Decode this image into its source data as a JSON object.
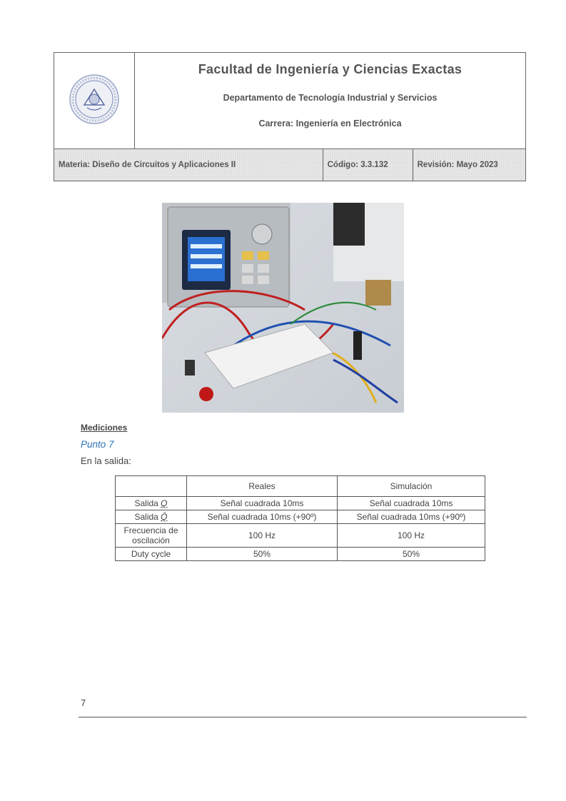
{
  "header": {
    "faculty": "Facultad de Ingeniería y Ciencias Exactas",
    "department": "Departamento de Tecnología Industrial y Servicios",
    "career": "Carrera: Ingeniería en Electrónica",
    "subject": "Materia: Diseño de Circuitos y Aplicaciones II",
    "code": "Código: 3.3.132",
    "revision": "Revisión: Mayo 2023"
  },
  "logo": {
    "name": "university-seal",
    "color": "#3a5aa8"
  },
  "photo": {
    "name": "lab-bench-photo"
  },
  "body": {
    "heading": "Mediciones",
    "subheading": "Punto 7",
    "intro": "En la salida:"
  },
  "table": {
    "headers": [
      "",
      "Reales",
      "Simulación"
    ],
    "rows": [
      {
        "label_prefix": "Salida ",
        "label_symbol": "Q",
        "label_style": "underline",
        "real": "Señal cuadrada 10ms",
        "sim": "Señal cuadrada 10ms"
      },
      {
        "label_prefix": "Salida ",
        "label_symbol": "Q̄",
        "label_style": "overline",
        "real": "Señal cuadrada 10ms (+90º)",
        "sim": "Señal cuadrada 10ms (+90º)"
      },
      {
        "label": "Frecuencia de oscilación",
        "real": "100 Hz",
        "sim": "100 Hz"
      },
      {
        "label": "Duty cycle",
        "real": "50%",
        "sim": "50%"
      }
    ]
  },
  "footer": {
    "page_number": "7"
  }
}
